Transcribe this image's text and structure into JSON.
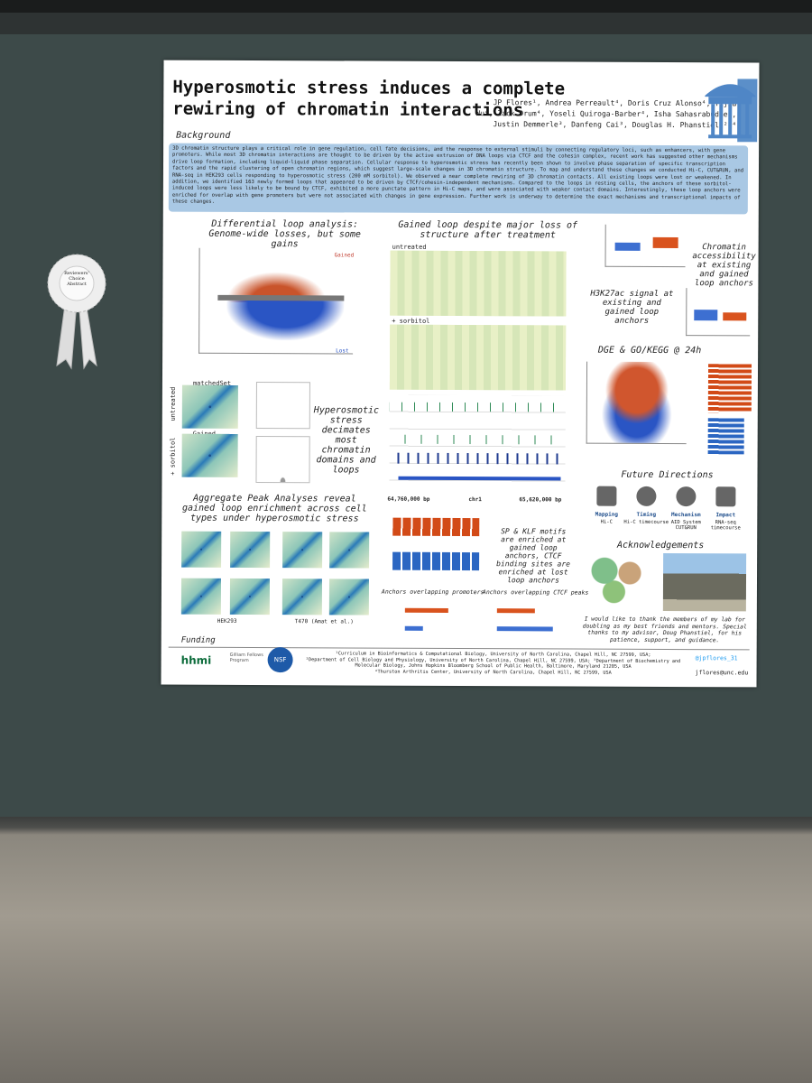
{
  "ribbon": "Reviewers' Choice Abstract",
  "poster": {
    "title": "Hyperosmotic stress induces a complete rewiring of chromatin interactions",
    "authors": "JP Flores¹, Andrea Perreault⁴, Doris Cruz Alonso⁴, Yijia Wu⁴, Zack Drum⁴, Yoseli Quiroga-Barber⁴, Isha Sahasrabudhe⁴, Justin Demmerle³, Danfeng Cai³, Douglas H. Phanstiel¹²³⁴",
    "background": {
      "heading": "Background",
      "text": "3D chromatin structure plays a critical role in gene regulation, cell fate decisions, and the response to external stimuli by connecting regulatory loci, such as enhancers, with gene promoters. While most 3D chromatin interactions are thought to be driven by the active extrusion of DNA loops via CTCF and the cohesin complex, recent work has suggested other mechanisms drive loop formation, including liquid-liquid phase separation. Cellular response to hyperosmotic stress has recently been shown to involve phase separation of specific transcription factors and the rapid clustering of open chromatin regions, which suggest large-scale changes in 3D chromatin structure. To map and understand these changes we conducted Hi-C, CUT&RUN, and RNA-seq in HEK293 cells responding to hyperosmotic stress (200 mM sorbitol). We observed a near complete rewiring of 3D chromatin contacts. All existing loops were lost or weakened. In addition, we identified 163 newly formed loops that appeared to be driven by CTCF/cohesin-independent mechanisms. Compared to the loops in resting cells, the anchors of these sorbitol-induced loops were less likely to be bound by CTCF, exhibited a more punctate pattern in Hi-C maps, and were associated with weaker contact domains. Interestingly, these loop anchors were enriched for overlap with gene promoters but were not associated with changes in gene expression. Further work is underway to determine the exact mechanisms and transcriptional impacts of these changes."
    },
    "differential": {
      "title": "Differential loop analysis: Genome-wide losses, but some gains",
      "gained": "Gained",
      "lost": "Lost"
    },
    "gained_loop": {
      "title": "Gained loop despite major loss of structure after treatment",
      "untreated": "untreated",
      "sorbitol": "+ sorbitol",
      "start": "64,760,000 bp",
      "chrom": "chr1",
      "end": "65,620,000 bp"
    },
    "accessibility": "Chromatin accessibility at existing and gained loop anchors",
    "h3k27ac": "H3K27ac signal at existing and gained loop anchors",
    "dge": "DGE & GO/KEGG @ 24h",
    "decimates": {
      "title": "Hyperosmotic stress decimates most chromatin domains and loops",
      "matched": "matchedSet",
      "gained": "Gained",
      "untreated": "untreated",
      "sorbitol": "+ sorbitol"
    },
    "apa": {
      "title": "Aggregate Peak Analyses reveal gained loop enrichment across cell types under hyperosmotic stress",
      "hek": "HEK293",
      "t47d": "T470 (Amat et al.)"
    },
    "motifs": "SP & KLF motifs are enriched at gained loop anchors, CTCF binding sites are enriched at lost loop anchors",
    "overlap": {
      "promoters": "Anchors overlapping promoters",
      "ctcf": "Anchors overlapping CTCF peaks"
    },
    "future": {
      "heading": "Future Directions",
      "items": [
        {
          "name": "Mapping",
          "desc": "Hi-C"
        },
        {
          "name": "Timing",
          "desc": "Hi-C timecourse"
        },
        {
          "name": "Mechanism",
          "desc": "AID System CUT&RUN"
        },
        {
          "name": "Impact",
          "desc": "RNA-seq timecourse"
        }
      ]
    },
    "acknowledgements": {
      "heading": "Acknowledgements",
      "text": "I would like to thank the members of my lab for doubling as my best friends and mentors. Special thanks to my advisor, Doug Phanstiel, for his patience, support, and guidance."
    },
    "funding": {
      "heading": "Funding",
      "hhmi": "hhmi",
      "gilliam": "Gilliam Fellows Program",
      "nsf": "NSF"
    },
    "affiliations": [
      "¹Curriculum in Bioinformatics & Computational Biology, University of North Carolina, Chapel Hill, NC 27599, USA;",
      "²Department of Cell Biology and Physiology, University of North Carolina, Chapel Hill, NC 27599, USA; ³Department of Biochemistry and Molecular Biology, Johns Hopkins Bloomberg School of Public Health, Baltimore, Maryland 21205, USA",
      "⁴Thurston Arthritis Center, University of North Carolina, Chapel Hill, NC 27599, USA"
    ],
    "twitter": "@jpflores_31",
    "email": "jflores@unc.edu"
  }
}
